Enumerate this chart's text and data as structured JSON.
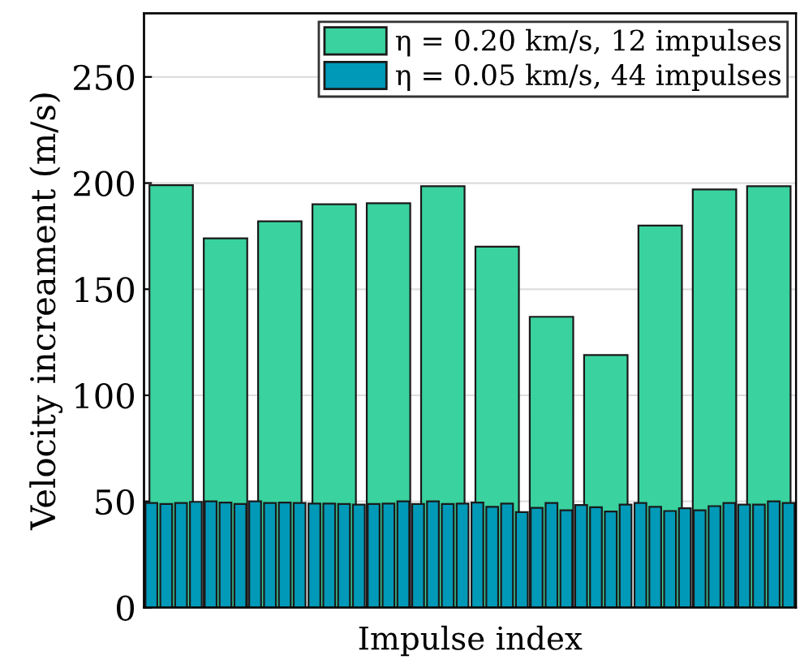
{
  "chart_data": [
    {
      "type": "bar",
      "xlabel": "Impulse index",
      "ylabel": "Velocity increament (m/s)",
      "categories": [
        null,
        null,
        null,
        null,
        null,
        null,
        null,
        null,
        null,
        null,
        null,
        null
      ],
      "ylim": [
        0,
        280
      ],
      "yticks": [
        0,
        50,
        100,
        150,
        200,
        250
      ],
      "grid": "y",
      "series": [
        {
          "name": "η = 0.20 km/s, 12 impulses",
          "color": "#3ad29f",
          "values": [
            199,
            174,
            182,
            190,
            190.5,
            198.5,
            170,
            137,
            119,
            180,
            197,
            198.5
          ]
        }
      ]
    },
    {
      "type": "bar",
      "categories": [
        null,
        null,
        null,
        null,
        null,
        null,
        null,
        null,
        null,
        null,
        null,
        null,
        null,
        null,
        null,
        null,
        null,
        null,
        null,
        null,
        null,
        null,
        null,
        null,
        null,
        null,
        null,
        null,
        null,
        null,
        null,
        null,
        null,
        null,
        null,
        null,
        null,
        null,
        null,
        null,
        null,
        null,
        null,
        null
      ],
      "ylim": [
        0,
        280
      ],
      "yticks": [
        0,
        50,
        100,
        150,
        200,
        250
      ],
      "tick_labels": false,
      "legend": "top right",
      "series": [
        {
          "name": "η = 0.05 km/s, 44 impulses",
          "color": "#0099b8",
          "values": [
            49.3,
            48.8,
            49.3,
            49.8,
            50,
            49.5,
            48.8,
            50,
            49.3,
            49.5,
            49.3,
            49,
            49,
            48.8,
            48.5,
            48.8,
            49,
            50,
            48.8,
            50,
            48.8,
            49,
            49.5,
            47.5,
            49,
            45,
            47,
            49.3,
            45.8,
            48.3,
            47.3,
            45.3,
            48.5,
            49.3,
            47.5,
            45.5,
            46.8,
            45.8,
            47.8,
            49.3,
            48.5,
            48.5,
            50,
            49.3
          ]
        }
      ]
    }
  ]
}
